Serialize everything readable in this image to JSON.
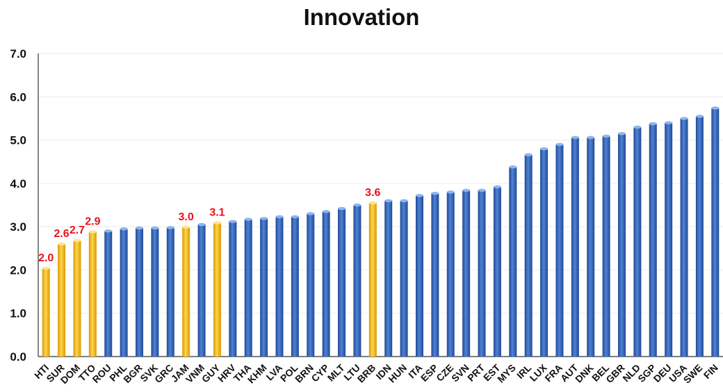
{
  "chart_data": {
    "type": "bar",
    "title": "Innovation",
    "xlabel": "",
    "ylabel": "",
    "ylim": [
      0,
      7
    ],
    "y_ticks": [
      "0.0",
      "1.0",
      "2.0",
      "3.0",
      "4.0",
      "5.0",
      "6.0",
      "7.0"
    ],
    "grid": true,
    "legend": "none",
    "colors": {
      "default_bar": "#2e5fb0",
      "highlight_bar": "#f2b705",
      "data_label": "#e8111b"
    },
    "categories": [
      "HTI",
      "SUR",
      "DOM",
      "TTO",
      "ROU",
      "PHL",
      "BGR",
      "SVK",
      "GRC",
      "JAM",
      "VNM",
      "GUY",
      "HRV",
      "THA",
      "KHM",
      "LVA",
      "POL",
      "BRN",
      "CYP",
      "MLT",
      "LTU",
      "BRB",
      "IDN",
      "HUN",
      "ITA",
      "ESP",
      "CZE",
      "SVN",
      "PRT",
      "EST",
      "MYS",
      "IRL",
      "LUX",
      "FRA",
      "AUT",
      "DNK",
      "BEL",
      "GBR",
      "NLD",
      "SGP",
      "DEU",
      "USA",
      "SWE",
      "FIN"
    ],
    "values": [
      2.04,
      2.6,
      2.68,
      2.88,
      2.9,
      2.95,
      2.97,
      2.97,
      2.98,
      2.99,
      3.05,
      3.09,
      3.12,
      3.17,
      3.19,
      3.23,
      3.23,
      3.3,
      3.35,
      3.42,
      3.5,
      3.55,
      3.6,
      3.6,
      3.72,
      3.77,
      3.8,
      3.84,
      3.84,
      3.92,
      4.38,
      4.66,
      4.8,
      4.9,
      5.06,
      5.06,
      5.09,
      5.15,
      5.3,
      5.38,
      5.4,
      5.5,
      5.55,
      5.74
    ],
    "highlighted": [
      "HTI",
      "SUR",
      "DOM",
      "TTO",
      "JAM",
      "GUY",
      "BRB"
    ],
    "data_labels": [
      {
        "category": "HTI",
        "text": "2.0"
      },
      {
        "category": "SUR",
        "text": "2.6"
      },
      {
        "category": "DOM",
        "text": "2.7"
      },
      {
        "category": "TTO",
        "text": "2.9"
      },
      {
        "category": "JAM",
        "text": "3.0"
      },
      {
        "category": "GUY",
        "text": "3.1"
      },
      {
        "category": "BRB",
        "text": "3.6"
      }
    ]
  }
}
